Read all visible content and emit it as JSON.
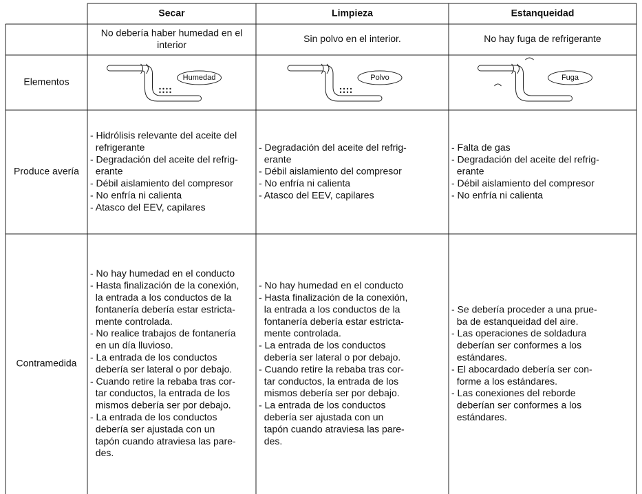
{
  "header": {
    "columns": [
      "Secar",
      "Limpieza",
      "Estanqueidad"
    ]
  },
  "description": [
    [
      "No debería haber humedad en el",
      "interior"
    ],
    [
      "Sin polvo en el interior."
    ],
    [
      "No hay fuga de refrigerante"
    ]
  ],
  "elements": {
    "label": "Elementos",
    "diagram_labels": [
      "Humedad",
      "Polvo",
      "Fuga"
    ]
  },
  "rows": [
    {
      "label": "Produce avería",
      "cells": [
        [
          "- Hidrólisis relevante del aceite del",
          "  refrigerante",
          "- Degradación del aceite del refrig-",
          "  erante",
          "- Débil aislamiento del compresor",
          "- No enfría ni calienta",
          "- Atasco del EEV, capilares"
        ],
        [
          "- Degradación del aceite del refrig-",
          "  erante",
          "- Débil aislamiento del compresor",
          "- No enfría ni calienta",
          "- Atasco del EEV, capilares"
        ],
        [
          "- Falta de gas",
          "- Degradación del aceite del refrig-",
          "  erante",
          "- Débil aislamiento del compresor",
          "- No enfría ni calienta"
        ]
      ]
    },
    {
      "label": "Contramedida",
      "cells": [
        [
          "- No hay humedad en el conducto",
          "- Hasta finalización de la conexión,",
          "  la entrada a los conductos de la",
          "  fontanería debería estar estricta-",
          "  mente controlada.",
          "- No realice trabajos de fontanería",
          "  en un día lluvioso.",
          "- La entrada de los conductos",
          "  debería ser lateral o por debajo.",
          "- Cuando retire la rebaba tras cor-",
          "  tar conductos, la entrada de los",
          "  mismos debería ser por debajo.",
          "- La entrada de los conductos",
          "  debería ser ajustada con un",
          "  tapón cuando atraviesa las pare-",
          "  des."
        ],
        [
          "- No hay humedad en el conducto",
          "- Hasta finalización de la conexión,",
          "  la entrada a los conductos de la",
          "  fontanería debería estar estricta-",
          "  mente controlada.",
          "- La entrada de los conductos",
          "  debería ser lateral o por debajo.",
          "- Cuando retire la rebaba tras cor-",
          "  tar conductos, la entrada de los",
          "  mismos debería ser por debajo.",
          "- La entrada de los conductos",
          "  debería ser ajustada con un",
          "  tapón cuando atraviesa las pare-",
          "  des."
        ],
        [
          "- Se debería proceder a una prue-",
          "  ba de estanqueidad del aire.",
          "- Las operaciones de soldadura",
          "  deberían ser conformes a los",
          "  estándares.",
          "- El abocardado debería ser con-",
          "  forme a los estándares.",
          "- Las conexiones del reborde",
          "  deberían ser conformes a los",
          "  estándares."
        ]
      ]
    }
  ]
}
